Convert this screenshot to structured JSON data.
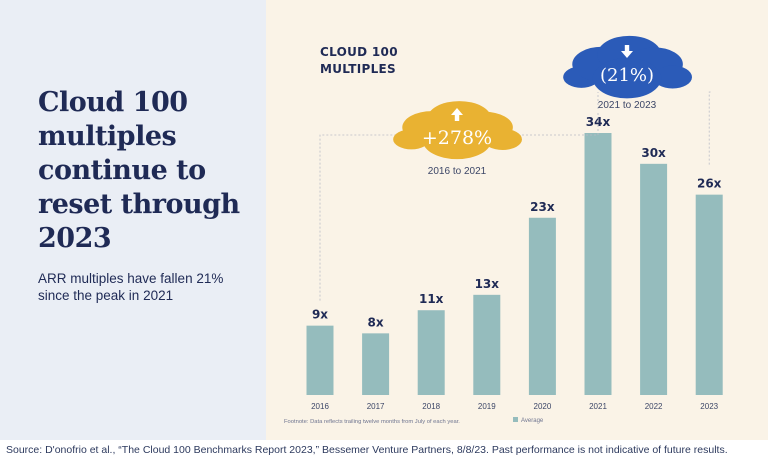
{
  "headline": "Cloud 100 multiples continue to reset through 2023",
  "subheadline": "ARR multiples have fallen 21% since the peak in 2021",
  "chart_title_line1": "CLOUD 100",
  "chart_title_line2": "MULTIPLES",
  "source": "Source: D'onofrio et al., “The Cloud 100 Benchmarks Report 2023,” Bessemer Venture Partners, 8/8/23. Past performance is not indicative of future results.",
  "colors": {
    "bar": "#95bcbd",
    "gold": "#e9b232",
    "blue": "#2b5bb8",
    "navy": "#1f2a55"
  },
  "chart_data": {
    "type": "bar",
    "title": "CLOUD 100 MULTIPLES",
    "categories": [
      "2016",
      "2017",
      "2018",
      "2019",
      "2020",
      "2021",
      "2022",
      "2023"
    ],
    "values": [
      9,
      8,
      11,
      13,
      23,
      34,
      30,
      26
    ],
    "data_labels": [
      "9x",
      "8x",
      "11x",
      "13x",
      "23x",
      "34x",
      "30x",
      "26x"
    ],
    "ylim": [
      0,
      34
    ],
    "legend": [
      {
        "label": "Average"
      }
    ],
    "footnote": "Footnote: Data reflects trailing twelve months from July of each year.",
    "annotations": [
      {
        "text": "+278%",
        "period": "2016 to 2021",
        "from": "2016",
        "to": "2021",
        "direction": "up"
      },
      {
        "text": "(21%)",
        "period": "2021 to 2023",
        "from": "2021",
        "to": "2023",
        "direction": "down"
      }
    ]
  }
}
